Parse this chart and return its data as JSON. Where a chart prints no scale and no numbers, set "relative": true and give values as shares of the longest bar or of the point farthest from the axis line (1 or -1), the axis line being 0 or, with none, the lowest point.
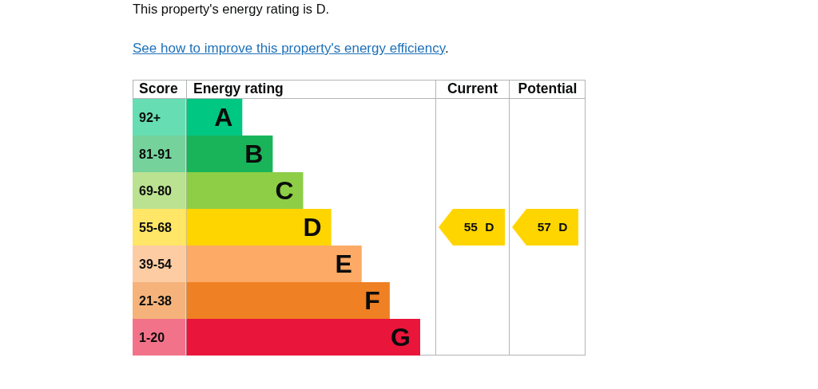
{
  "chart_data": {
    "type": "bar",
    "orientation": "horizontal",
    "relative": true,
    "title": "This property's energy rating is D.",
    "ylabel": "Score",
    "xlabel": "Energy rating",
    "categories": [
      "92+",
      "81-91",
      "69-80",
      "55-68",
      "39-54",
      "21-38",
      "1-20"
    ],
    "values": [
      0.24,
      0.37,
      0.5,
      0.62,
      0.75,
      0.87,
      1
    ],
    "colors": [
      "#00c781",
      "#19b459",
      "#8dce46",
      "#ffd500",
      "#fcaa65",
      "#ef8023",
      "#e9153b"
    ],
    "annotations": [
      "See how to improve this property's energy efficiency.",
      "Current",
      "Potential",
      "55 D",
      "57 D",
      {
        "text": "A",
        "x": 0.24,
        "y": "92+"
      },
      {
        "text": "B",
        "x": 0.37,
        "y": "81-91"
      },
      {
        "text": "C",
        "x": 0.5,
        "y": "69-80"
      },
      {
        "text": "D",
        "x": 0.62,
        "y": "55-68"
      },
      {
        "text": "E",
        "x": 0.75,
        "y": "39-54"
      },
      {
        "text": "F",
        "x": 0.87,
        "y": "21-38"
      },
      {
        "text": "G",
        "x": 1,
        "y": "1-20"
      }
    ]
  }
}
